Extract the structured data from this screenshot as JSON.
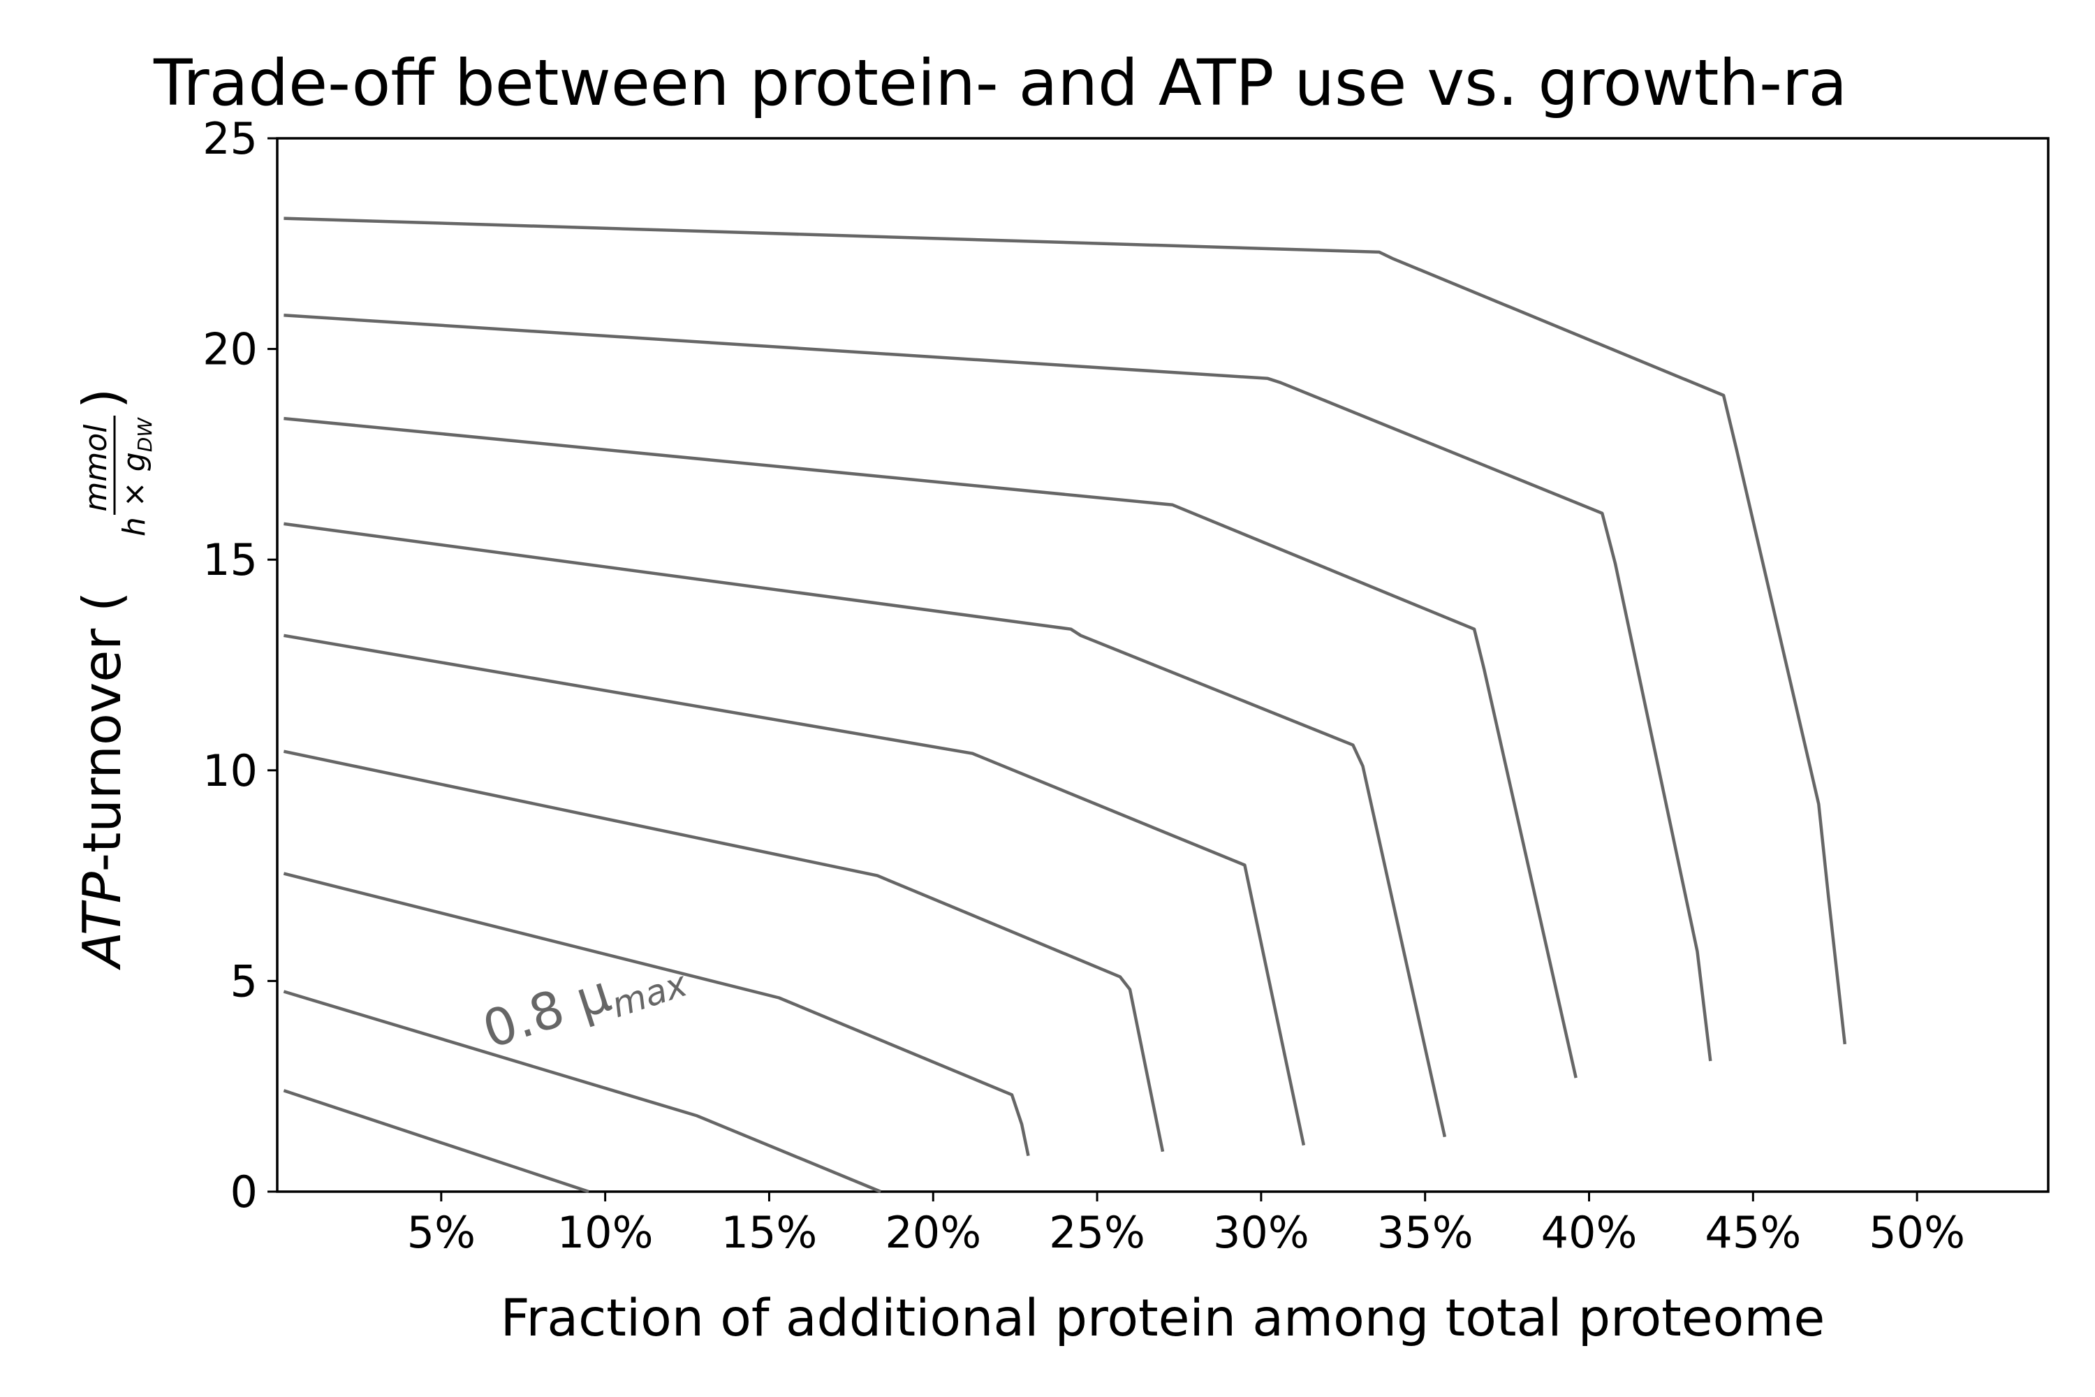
{
  "chart_data": {
    "type": "line",
    "title": "Trade-off between protein- and ATP use vs. growth-ra",
    "xlabel": "Fraction of additional protein among total proteome",
    "ylabel": {
      "italic": "ATP",
      "text": "-turnover (",
      "frac_numerator": "mmol",
      "frac_denominator": "h × g",
      "frac_subscript": "DW",
      "close": ")"
    },
    "xlim": [
      0,
      0.54
    ],
    "ylim": [
      0,
      25
    ],
    "x_ticks": [
      0.05,
      0.1,
      0.15,
      0.2,
      0.25,
      0.3,
      0.35,
      0.4,
      0.45,
      0.5
    ],
    "x_tick_labels": [
      "5%",
      "10%",
      "15%",
      "20%",
      "25%",
      "30%",
      "35%",
      "40%",
      "45%",
      "50%"
    ],
    "y_ticks": [
      0,
      5,
      10,
      15,
      20,
      25
    ],
    "y_tick_labels": [
      "0",
      "5",
      "10",
      "15",
      "20",
      "25"
    ],
    "line_color": "#666666",
    "grid": false,
    "contour_label": {
      "text": "0.8 μ",
      "subscript": "max",
      "x": 0.065,
      "y": 3.4,
      "rotation": -18
    },
    "series": [
      {
        "points": [
          [
            0.002,
            2.4
          ],
          [
            0.095,
            0.0
          ]
        ]
      },
      {
        "points": [
          [
            0.002,
            4.75
          ],
          [
            0.128,
            1.8
          ],
          [
            0.184,
            0.0
          ]
        ]
      },
      {
        "points": [
          [
            0.002,
            7.55
          ],
          [
            0.153,
            4.6
          ],
          [
            0.224,
            2.3
          ],
          [
            0.227,
            1.6
          ],
          [
            0.229,
            0.85
          ]
        ]
      },
      {
        "points": [
          [
            0.002,
            10.45
          ],
          [
            0.183,
            7.5
          ],
          [
            0.257,
            5.1
          ],
          [
            0.26,
            4.8
          ],
          [
            0.27,
            0.95
          ]
        ]
      },
      {
        "points": [
          [
            0.002,
            13.2
          ],
          [
            0.212,
            10.4
          ],
          [
            0.295,
            7.75
          ],
          [
            0.313,
            1.1
          ]
        ]
      },
      {
        "points": [
          [
            0.002,
            15.85
          ],
          [
            0.242,
            13.35
          ],
          [
            0.245,
            13.2
          ],
          [
            0.328,
            10.6
          ],
          [
            0.331,
            10.1
          ],
          [
            0.356,
            1.3
          ]
        ]
      },
      {
        "points": [
          [
            0.002,
            18.35
          ],
          [
            0.273,
            16.3
          ],
          [
            0.365,
            13.35
          ],
          [
            0.368,
            12.4
          ],
          [
            0.396,
            2.7
          ]
        ]
      },
      {
        "points": [
          [
            0.002,
            20.8
          ],
          [
            0.302,
            19.3
          ],
          [
            0.306,
            19.2
          ],
          [
            0.404,
            16.1
          ],
          [
            0.408,
            14.9
          ],
          [
            0.433,
            5.7
          ],
          [
            0.437,
            3.1
          ]
        ]
      },
      {
        "points": [
          [
            0.002,
            23.1
          ],
          [
            0.336,
            22.3
          ],
          [
            0.34,
            22.15
          ],
          [
            0.441,
            18.9
          ],
          [
            0.445,
            17.6
          ],
          [
            0.47,
            9.2
          ],
          [
            0.473,
            7.0
          ],
          [
            0.478,
            3.5
          ]
        ]
      }
    ]
  }
}
